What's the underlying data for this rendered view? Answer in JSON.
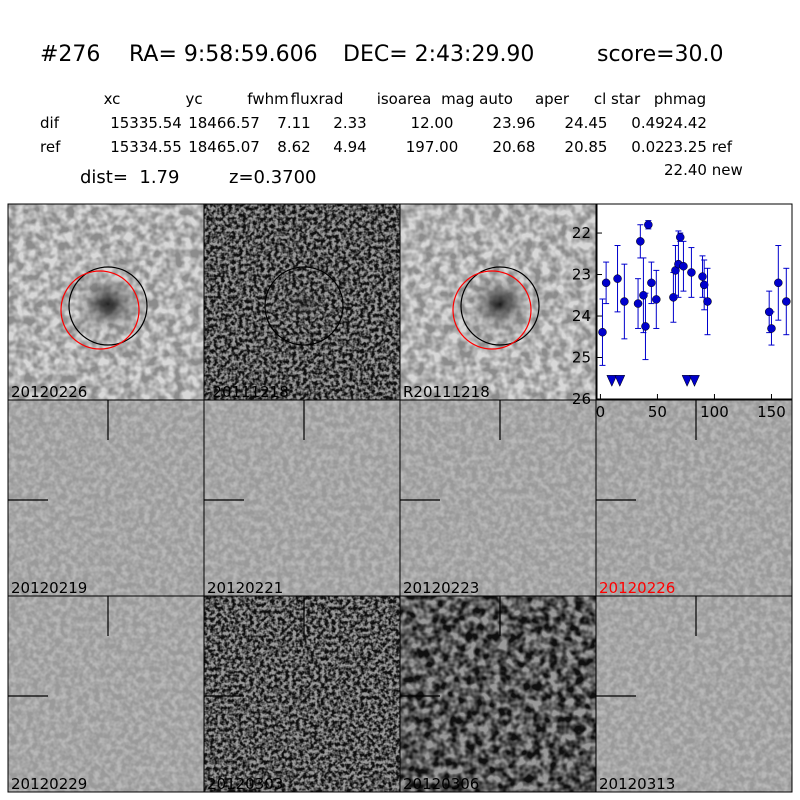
{
  "header": {
    "id": "#276",
    "ra": "RA= 9:58:59.606",
    "dec": "DEC= 2:43:29.90",
    "score": "score=30.0"
  },
  "table": {
    "columns": [
      "xc",
      "yc",
      "fwhm",
      "fluxrad",
      "isoarea",
      "mag auto",
      "aper",
      "cl star",
      "phmag"
    ],
    "rows": [
      [
        "dif",
        "15335.54",
        "18466.57",
        "7.11",
        "2.33",
        "12.00",
        "23.96",
        "24.45",
        "0.49",
        "24.42"
      ],
      [
        "ref",
        "15334.55",
        "18465.07",
        "8.62",
        "4.94",
        "197.00",
        "20.68",
        "20.85",
        "0.02",
        "23.25 ref"
      ]
    ],
    "extra": "22.40 new",
    "dist": "dist=  1.79",
    "z": "z=0.3700"
  },
  "stamps": [
    {
      "label": "20120226"
    },
    {
      "label": "-20111218"
    },
    {
      "label": "R20111218"
    },
    {
      "label": "20120219"
    },
    {
      "label": "20120221"
    },
    {
      "label": "20120223"
    },
    {
      "label": "20120226",
      "color": "#ff0000"
    },
    {
      "label": "20120229"
    },
    {
      "label": "20120303"
    },
    {
      "label": "20120306"
    },
    {
      "label": "20120313"
    }
  ],
  "chart_data": {
    "type": "scatter",
    "xlim": [
      -3,
      168
    ],
    "ylim": [
      21.3,
      26
    ],
    "y_inverted": true,
    "xticks": [
      0,
      50,
      100,
      150
    ],
    "yticks": [
      22,
      23,
      24,
      25,
      26
    ],
    "series": [
      {
        "color": "#0000cc",
        "marker": "circle",
        "x": [
          1.8,
          5,
          15,
          21,
          33,
          35,
          37.7,
          39.5,
          42,
          44.7,
          49,
          64,
          65.8,
          68.4,
          70,
          72.8,
          79.8,
          89.5,
          91,
          93.9,
          148,
          150,
          156,
          163
        ],
        "values": [
          24.39,
          23.2,
          23.1,
          23.65,
          23.7,
          22.2,
          23.5,
          24.25,
          21.8,
          23.2,
          23.6,
          23.55,
          22.9,
          22.75,
          22.1,
          22.8,
          22.95,
          23.05,
          23.25,
          23.65,
          23.9,
          24.3,
          23.2,
          23.65
        ],
        "errors": [
          0.8,
          0.5,
          0.8,
          0.9,
          0.6,
          0.4,
          0.9,
          0.8,
          0.1,
          0.5,
          0.7,
          0.6,
          0.6,
          0.8,
          0.1,
          0.6,
          0.6,
          0.5,
          0.6,
          0.8,
          0.5,
          0.4,
          0.9,
          0.8
        ]
      },
      {
        "color": "#0000cc",
        "marker": "limit",
        "x": [
          10,
          17,
          76,
          82.5
        ],
        "values": [
          25.55,
          25.55,
          25.55,
          25.55
        ]
      }
    ]
  }
}
